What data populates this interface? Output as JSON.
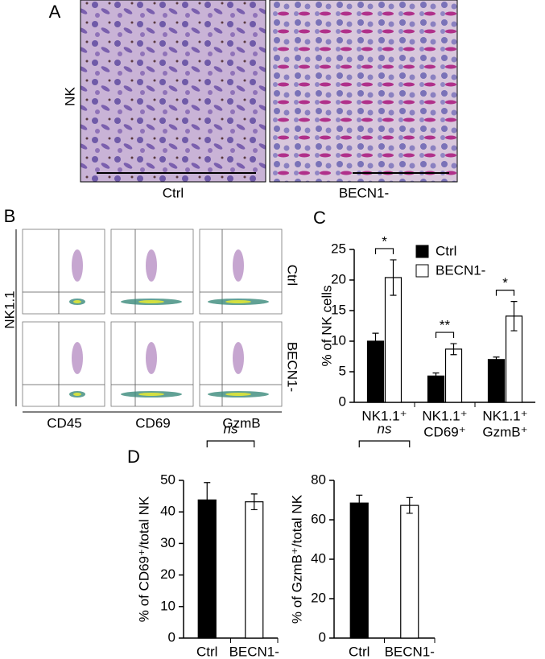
{
  "panel_labels": [
    "A",
    "B",
    "C",
    "D"
  ],
  "panel_a": {
    "row_label": "NK",
    "captions": [
      "Ctrl",
      "BECN1-"
    ]
  },
  "panel_b": {
    "y_label": "NK1.1",
    "row_labels": [
      "Ctrl",
      "BECN1-"
    ],
    "x_labels": [
      "CD45",
      "CD69",
      "GzmB"
    ]
  },
  "chart_data": [
    {
      "type": "bar",
      "y_label": "% of NK cells",
      "categories": [
        [
          "NK1.1⁺"
        ],
        [
          "NK1.1⁺",
          "CD69⁺"
        ],
        [
          "NK1.1⁺",
          "GzmB⁺"
        ]
      ],
      "series": [
        {
          "name": "Ctrl",
          "color": "#000000",
          "values": [
            10,
            4.3,
            7
          ],
          "errors": [
            1.3,
            0.5,
            0.4
          ]
        },
        {
          "name": "BECN1-",
          "color": "#ffffff",
          "values": [
            20.4,
            8.7,
            14.1
          ],
          "errors": [
            2.9,
            0.9,
            2.4
          ]
        }
      ],
      "annotations": [
        "*",
        "**",
        "*"
      ],
      "ylim": [
        0,
        25
      ],
      "yticks": [
        0,
        5,
        10,
        15,
        20,
        25
      ],
      "legend": "upper-right"
    },
    {
      "type": "bar",
      "y_label": "% of CD69⁺/total NK",
      "categories": [
        [
          "Ctrl"
        ],
        [
          "BECN1-"
        ]
      ],
      "values": [
        43.8,
        43.2
      ],
      "errors": [
        5.5,
        2.5
      ],
      "colors": [
        "#000000",
        "#ffffff"
      ],
      "annotation": "ns",
      "ylim": [
        0,
        50
      ],
      "yticks": [
        0,
        10,
        20,
        30,
        40,
        50
      ]
    },
    {
      "type": "bar",
      "y_label": "% of GzmB⁺/total NK",
      "categories": [
        [
          "Ctrl"
        ],
        [
          "BECN1-"
        ]
      ],
      "values": [
        68.5,
        67.3
      ],
      "errors": [
        4,
        4
      ],
      "colors": [
        "#000000",
        "#ffffff"
      ],
      "annotation": "ns",
      "ylim": [
        0,
        80
      ],
      "yticks": [
        0,
        20,
        40,
        60,
        80
      ]
    }
  ]
}
